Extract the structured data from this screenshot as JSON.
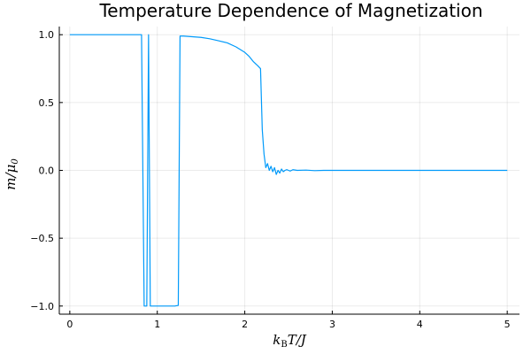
{
  "chart_data": {
    "type": "line",
    "title": "Temperature Dependence of Magnetization",
    "xlabel": "k_B T/J",
    "ylabel": "m/μ_0",
    "xlim": [
      -0.12,
      5.14
    ],
    "ylim": [
      -1.06,
      1.06
    ],
    "xticks": [
      0,
      1,
      2,
      3,
      4,
      5
    ],
    "xtick_labels": [
      "0",
      "1",
      "2",
      "3",
      "4",
      "5"
    ],
    "yticks": [
      -1.0,
      -0.5,
      0.0,
      0.5,
      1.0
    ],
    "ytick_labels": [
      "−1.0",
      "−0.5",
      "0.0",
      "0.5",
      "1.0"
    ],
    "grid": true,
    "legend": "none",
    "color": "#009AFA",
    "series": [
      {
        "x": [
          0.0,
          0.5,
          0.8,
          0.82,
          0.85,
          0.88,
          0.9,
          0.92,
          0.94,
          1.0,
          1.1,
          1.2,
          1.24,
          1.26,
          1.3,
          1.4,
          1.5,
          1.6,
          1.7,
          1.8,
          1.9,
          2.0,
          2.05,
          2.1,
          2.15,
          2.18,
          2.2,
          2.22,
          2.24,
          2.26,
          2.28,
          2.3,
          2.32,
          2.34,
          2.36,
          2.38,
          2.4,
          2.42,
          2.44,
          2.46,
          2.48,
          2.5,
          2.52,
          2.55,
          2.6,
          2.7,
          2.8,
          2.9,
          3.0,
          3.5,
          4.0,
          4.5,
          5.0
        ],
        "y": [
          1.0,
          1.0,
          1.0,
          1.0,
          -1.0,
          -1.0,
          1.0,
          -1.0,
          -1.0,
          -1.0,
          -1.0,
          -1.0,
          -0.995,
          0.99,
          0.99,
          0.985,
          0.98,
          0.97,
          0.955,
          0.94,
          0.91,
          0.87,
          0.84,
          0.8,
          0.77,
          0.75,
          0.3,
          0.12,
          0.02,
          0.05,
          0.0,
          0.03,
          -0.01,
          0.02,
          -0.03,
          0.0,
          -0.02,
          0.01,
          -0.01,
          0.0,
          0.005,
          0.0,
          -0.005,
          0.005,
          0.0,
          0.002,
          -0.002,
          0.0,
          0.0,
          0.0,
          0.0,
          0.0,
          0.0
        ]
      }
    ]
  }
}
